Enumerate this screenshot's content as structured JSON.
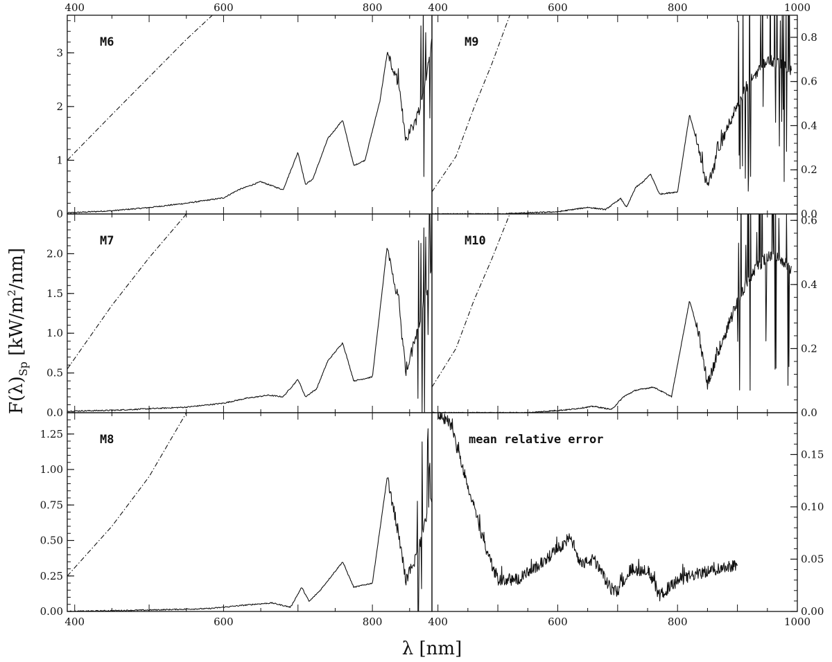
{
  "chart_data": {
    "type": "line",
    "xlabel": "λ [nm]",
    "ylabel": "F(λ)Sp [kW/m²/nm]",
    "ylabel_parts": {
      "main": "F(λ)",
      "sub": "Sp",
      "units_a": " [kW/m",
      "sup": "2",
      "units_b": "/nm]"
    },
    "grid": false,
    "axis_ticks": {
      "left_x_top": [
        "400",
        "600",
        "800"
      ],
      "right_x_top": [
        "400",
        "600",
        "800",
        "1000"
      ],
      "left_x_bottom": [
        "400",
        "600",
        "800"
      ],
      "right_x_bottom": [
        "400",
        "600",
        "800",
        "1000"
      ]
    },
    "panels": [
      {
        "id": "M6",
        "label": "M6",
        "column": "left",
        "row": 0,
        "xlim": [
          390,
          880
        ],
        "ylim": [
          0,
          3.7
        ],
        "yticks": [
          0,
          1,
          2,
          3
        ],
        "yticklabels": [
          "0",
          "1",
          "2",
          "3"
        ],
        "tick_side": "left",
        "spectrum": {
          "points": [
            [
              390,
              0.02
            ],
            [
              450,
              0.06
            ],
            [
              500,
              0.12
            ],
            [
              550,
              0.2
            ],
            [
              600,
              0.3
            ],
            [
              620,
              0.45
            ],
            [
              650,
              0.6
            ],
            [
              680,
              0.45
            ],
            [
              700,
              1.15
            ],
            [
              710,
              0.55
            ],
            [
              720,
              0.65
            ],
            [
              740,
              1.4
            ],
            [
              760,
              1.75
            ],
            [
              775,
              0.9
            ],
            [
              790,
              1.0
            ],
            [
              810,
              2.1
            ],
            [
              820,
              3.0
            ],
            [
              835,
              2.4
            ],
            [
              845,
              1.4
            ],
            [
              860,
              1.8
            ],
            [
              870,
              2.4
            ],
            [
              880,
              3.2
            ]
          ],
          "noise_from": 820,
          "spikes_from": 860
        },
        "model": {
          "points": [
            [
              390,
              1.0
            ],
            [
              450,
              1.85
            ],
            [
              500,
              2.55
            ],
            [
              550,
              3.25
            ],
            [
              585,
              3.7
            ]
          ]
        }
      },
      {
        "id": "M7",
        "label": "M7",
        "column": "left",
        "row": 1,
        "xlim": [
          390,
          880
        ],
        "ylim": [
          0,
          2.5
        ],
        "yticks": [
          0,
          0.5,
          1.0,
          1.5,
          2.0
        ],
        "yticklabels": [
          "0.0",
          "0.5",
          "1.0",
          "1.5",
          "2.0"
        ],
        "tick_side": "left",
        "spectrum": {
          "points": [
            [
              390,
              0.02
            ],
            [
              450,
              0.03
            ],
            [
              500,
              0.05
            ],
            [
              550,
              0.07
            ],
            [
              600,
              0.12
            ],
            [
              630,
              0.18
            ],
            [
              660,
              0.22
            ],
            [
              680,
              0.2
            ],
            [
              700,
              0.42
            ],
            [
              710,
              0.2
            ],
            [
              725,
              0.3
            ],
            [
              740,
              0.65
            ],
            [
              760,
              0.88
            ],
            [
              775,
              0.4
            ],
            [
              800,
              0.45
            ],
            [
              820,
              2.1
            ],
            [
              835,
              1.4
            ],
            [
              845,
              0.5
            ],
            [
              860,
              1.0
            ],
            [
              880,
              1.8
            ]
          ],
          "noise_from": 820,
          "spikes_from": 860
        },
        "model": {
          "points": [
            [
              390,
              0.55
            ],
            [
              450,
              1.35
            ],
            [
              500,
              1.95
            ],
            [
              550,
              2.5
            ]
          ]
        }
      },
      {
        "id": "M8",
        "label": "M8",
        "column": "left",
        "row": 2,
        "xlim": [
          390,
          880
        ],
        "ylim": [
          0,
          1.4
        ],
        "yticks": [
          0,
          0.25,
          0.5,
          0.75,
          1.0,
          1.25
        ],
        "yticklabels": [
          "0.00",
          "0.25",
          "0.50",
          "0.75",
          "1.00",
          "1.25"
        ],
        "tick_side": "left",
        "spectrum": {
          "points": [
            [
              390,
              0.0
            ],
            [
              500,
              0.01
            ],
            [
              580,
              0.02
            ],
            [
              640,
              0.05
            ],
            [
              665,
              0.06
            ],
            [
              690,
              0.03
            ],
            [
              705,
              0.17
            ],
            [
              715,
              0.07
            ],
            [
              730,
              0.15
            ],
            [
              745,
              0.25
            ],
            [
              760,
              0.35
            ],
            [
              775,
              0.17
            ],
            [
              800,
              0.2
            ],
            [
              820,
              0.95
            ],
            [
              835,
              0.55
            ],
            [
              845,
              0.22
            ],
            [
              860,
              0.4
            ],
            [
              880,
              0.8
            ]
          ],
          "noise_from": 820,
          "spikes_from": 860
        },
        "model": {
          "points": [
            [
              390,
              0.25
            ],
            [
              450,
              0.6
            ],
            [
              500,
              0.95
            ],
            [
              550,
              1.4
            ]
          ]
        }
      },
      {
        "id": "M9",
        "label": "M9",
        "column": "right",
        "row": 0,
        "xlim": [
          390,
          1000
        ],
        "ylim": [
          0,
          0.9
        ],
        "yticks": [
          0,
          0.2,
          0.4,
          0.6,
          0.8
        ],
        "yticklabels": [
          "0.0",
          "0.2",
          "0.4",
          "0.6",
          "0.8"
        ],
        "tick_side": "right",
        "spectrum": {
          "points": [
            [
              390,
              0.0
            ],
            [
              500,
              0.0
            ],
            [
              600,
              0.01
            ],
            [
              650,
              0.03
            ],
            [
              680,
              0.02
            ],
            [
              705,
              0.07
            ],
            [
              715,
              0.03
            ],
            [
              730,
              0.12
            ],
            [
              740,
              0.14
            ],
            [
              755,
              0.18
            ],
            [
              770,
              0.09
            ],
            [
              800,
              0.1
            ],
            [
              820,
              0.45
            ],
            [
              835,
              0.3
            ],
            [
              850,
              0.12
            ],
            [
              870,
              0.3
            ],
            [
              900,
              0.5
            ],
            [
              920,
              0.6
            ],
            [
              950,
              0.7
            ],
            [
              990,
              0.65
            ]
          ],
          "noise_from": 830,
          "spikes_from": 900
        },
        "model": {
          "points": [
            [
              390,
              0.1
            ],
            [
              430,
              0.26
            ],
            [
              460,
              0.48
            ],
            [
              490,
              0.68
            ],
            [
              520,
              0.9
            ]
          ]
        }
      },
      {
        "id": "M10",
        "label": "M10",
        "column": "right",
        "row": 1,
        "xlim": [
          390,
          1000
        ],
        "ylim": [
          0,
          0.62
        ],
        "yticks": [
          0,
          0.2,
          0.4,
          0.6
        ],
        "yticklabels": [
          "0.0",
          "0.2",
          "0.4",
          "0.6"
        ],
        "tick_side": "right",
        "spectrum": {
          "points": [
            [
              390,
              0.0
            ],
            [
              550,
              0.0
            ],
            [
              620,
              0.01
            ],
            [
              660,
              0.02
            ],
            [
              690,
              0.01
            ],
            [
              710,
              0.05
            ],
            [
              730,
              0.07
            ],
            [
              760,
              0.08
            ],
            [
              790,
              0.05
            ],
            [
              820,
              0.35
            ],
            [
              835,
              0.25
            ],
            [
              850,
              0.09
            ],
            [
              870,
              0.2
            ],
            [
              900,
              0.35
            ],
            [
              930,
              0.45
            ],
            [
              960,
              0.5
            ],
            [
              990,
              0.45
            ]
          ],
          "noise_from": 830,
          "spikes_from": 900
        },
        "model": {
          "points": [
            [
              390,
              0.08
            ],
            [
              430,
              0.2
            ],
            [
              460,
              0.35
            ],
            [
              490,
              0.48
            ],
            [
              520,
              0.62
            ]
          ]
        }
      },
      {
        "id": "MRE",
        "label": "mean relative error",
        "column": "right",
        "row": 2,
        "xlim": [
          390,
          1000
        ],
        "ylim": [
          0,
          0.19
        ],
        "yticks": [
          0,
          0.05,
          0.1,
          0.15
        ],
        "yticklabels": [
          "0.00",
          "0.05",
          "0.10",
          "0.15"
        ],
        "tick_side": "right",
        "spectrum": {
          "points": [
            [
              400,
              0.19
            ],
            [
              420,
              0.18
            ],
            [
              440,
              0.14
            ],
            [
              460,
              0.1
            ],
            [
              480,
              0.06
            ],
            [
              500,
              0.03
            ],
            [
              530,
              0.03
            ],
            [
              560,
              0.04
            ],
            [
              580,
              0.05
            ],
            [
              600,
              0.06
            ],
            [
              620,
              0.07
            ],
            [
              640,
              0.045
            ],
            [
              660,
              0.05
            ],
            [
              690,
              0.02
            ],
            [
              700,
              0.02
            ],
            [
              720,
              0.04
            ],
            [
              750,
              0.04
            ],
            [
              770,
              0.015
            ],
            [
              800,
              0.03
            ],
            [
              830,
              0.035
            ],
            [
              860,
              0.04
            ],
            [
              900,
              0.045
            ]
          ],
          "noise_from": 400,
          "spikes_from": 2000
        },
        "model": null
      }
    ]
  }
}
